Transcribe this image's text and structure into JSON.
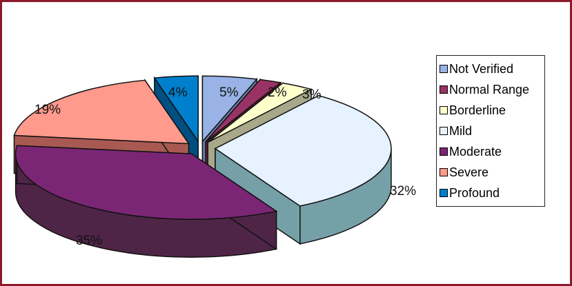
{
  "chart_data": {
    "type": "pie",
    "style": "3d-exploded",
    "categories": [
      "Not Verified",
      "Normal Range",
      "Borderline",
      "Mild",
      "Moderate",
      "Severe",
      "Profound"
    ],
    "values": [
      5,
      2,
      3,
      32,
      35,
      19,
      4
    ],
    "labels": [
      "5%",
      "2%",
      "3%",
      "32%",
      "35%",
      "19%",
      "4%"
    ],
    "colors": [
      "#99b3e6",
      "#993366",
      "#ffffcc",
      "#e6f2ff",
      "#7a2675",
      "#ff9a8c",
      "#0080cc"
    ],
    "side_colors": [
      "#6a7fa8",
      "#6e2344",
      "#a8a88a",
      "#76a0a8",
      "#4f2547",
      "#a85a52",
      "#004f80"
    ],
    "legend_position": "right"
  }
}
